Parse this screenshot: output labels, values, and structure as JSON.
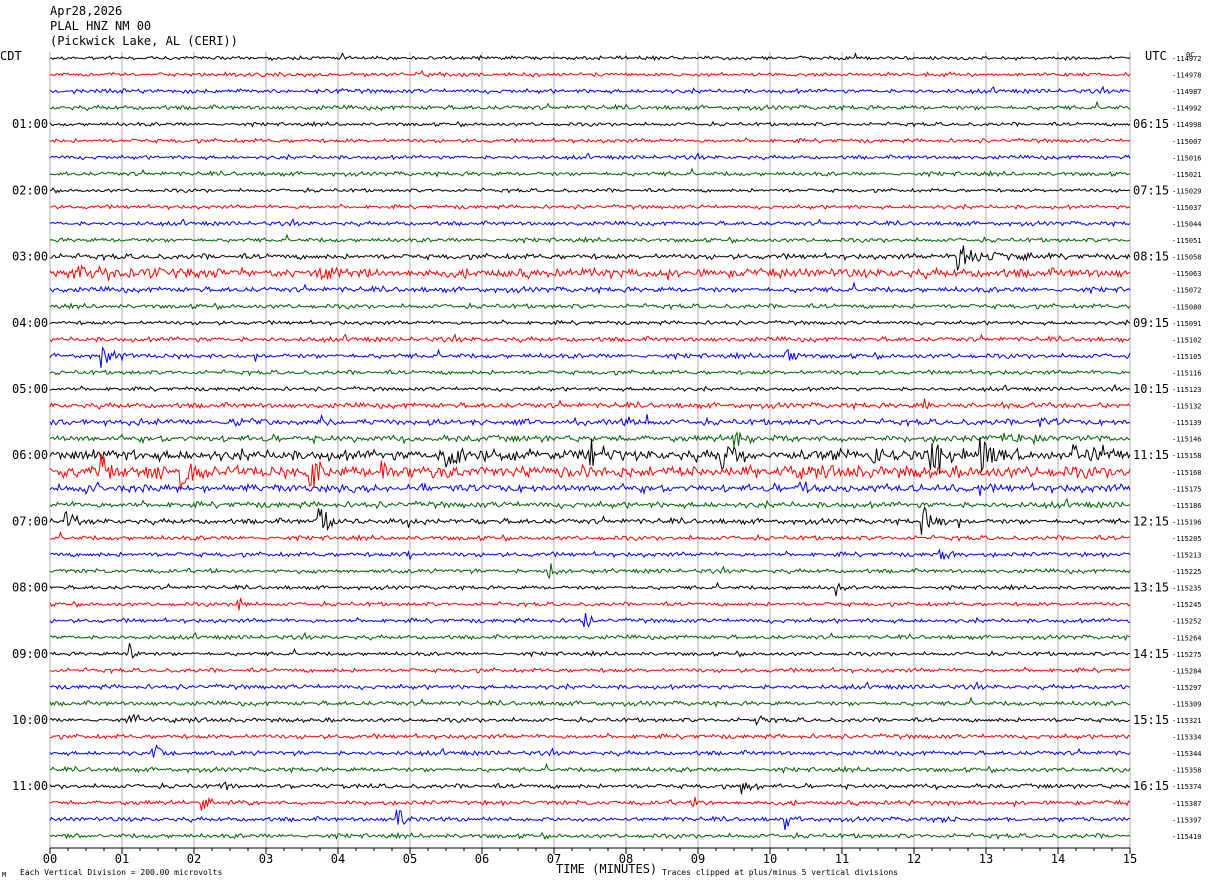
{
  "header": {
    "date": "Apr28,2026",
    "station": "PLAL HNZ NM 00",
    "location": "(Pickwick Lake, AL (CERI))"
  },
  "left_zone": "CDT",
  "right_zone": "UTC",
  "corner_mark": "0C",
  "footer": {
    "scale_note": "Each Vertical Division =  200.00 microvolts",
    "xlabel": "TIME (MINUTES)",
    "clip_note": "Traces clipped at plus/minus 5 vertical divisions",
    "logo": "M"
  },
  "colors": {
    "trace_cycle": [
      "#000000",
      "#ff0000",
      "#0000ff",
      "#006400"
    ],
    "grid": "#b0b0b0"
  },
  "chart_data": {
    "type": "line",
    "xlabel": "TIME (MINUTES)",
    "xlim": [
      0,
      15
    ],
    "x_ticks": [
      "00",
      "01",
      "02",
      "03",
      "04",
      "05",
      "06",
      "07",
      "08",
      "09",
      "10",
      "11",
      "12",
      "13",
      "14",
      "15"
    ],
    "left_time_labels": [
      {
        "row": 4,
        "text": "01:00"
      },
      {
        "row": 8,
        "text": "02:00"
      },
      {
        "row": 12,
        "text": "03:00"
      },
      {
        "row": 16,
        "text": "04:00"
      },
      {
        "row": 20,
        "text": "05:00"
      },
      {
        "row": 24,
        "text": "06:00"
      },
      {
        "row": 28,
        "text": "07:00"
      },
      {
        "row": 32,
        "text": "08:00"
      },
      {
        "row": 36,
        "text": "09:00"
      },
      {
        "row": 40,
        "text": "10:00"
      },
      {
        "row": 44,
        "text": "11:00"
      }
    ],
    "right_time_labels": [
      {
        "row": 4,
        "text": "06:15"
      },
      {
        "row": 8,
        "text": "07:15"
      },
      {
        "row": 12,
        "text": "08:15"
      },
      {
        "row": 16,
        "text": "09:15"
      },
      {
        "row": 20,
        "text": "10:15"
      },
      {
        "row": 24,
        "text": "11:15"
      },
      {
        "row": 28,
        "text": "12:15"
      },
      {
        "row": 32,
        "text": "13:15"
      },
      {
        "row": 36,
        "text": "14:15"
      },
      {
        "row": 40,
        "text": "15:15"
      },
      {
        "row": 44,
        "text": "16:15"
      }
    ],
    "trace_offsets": [
      "-114972",
      "-114978",
      "-114987",
      "-114992",
      "-114998",
      "-115007",
      "-115016",
      "-115021",
      "-115029",
      "-115037",
      "-115044",
      "-115051",
      "-115058",
      "-115063",
      "-115072",
      "-115080",
      "-115091",
      "-115102",
      "-115105",
      "-115116",
      "-115123",
      "-115132",
      "-115139",
      "-115146",
      "-115158",
      "-115168",
      "-115175",
      "-115186",
      "-115196",
      "-115205",
      "-115213",
      "-115225",
      "-115235",
      "-115245",
      "-115252",
      "-115264",
      "-115275",
      "-115284",
      "-115297",
      "-115309",
      "-115321",
      "-115334",
      "-115344",
      "-115358",
      "-115374",
      "-115387",
      "-115397",
      "-115410"
    ],
    "noise": [
      1.2,
      1.3,
      1.4,
      1.5,
      1.2,
      1.3,
      1.3,
      1.4,
      1.2,
      1.3,
      1.4,
      1.4,
      1.8,
      3.0,
      1.8,
      1.5,
      1.3,
      1.6,
      1.6,
      1.4,
      1.3,
      1.8,
      2.0,
      2.2,
      3.5,
      4.0,
      2.6,
      2.0,
      1.8,
      1.5,
      1.5,
      1.4,
      1.3,
      1.3,
      1.4,
      1.4,
      1.3,
      1.4,
      1.5,
      1.5,
      1.4,
      1.5,
      1.5,
      1.5,
      1.5,
      1.5,
      1.5,
      1.5
    ],
    "events": [
      {
        "row": 12,
        "min": 12.6,
        "amp": 9,
        "dur": 1.4
      },
      {
        "row": 13,
        "min": 0.3,
        "amp": 5,
        "dur": 2.6
      },
      {
        "row": 13,
        "min": 3.7,
        "amp": 4,
        "dur": 1.0
      },
      {
        "row": 13,
        "min": 7.4,
        "amp": 5,
        "dur": 0.9
      },
      {
        "row": 18,
        "min": 0.7,
        "amp": 8,
        "dur": 0.5
      },
      {
        "row": 18,
        "min": 10.2,
        "amp": 7,
        "dur": 0.3
      },
      {
        "row": 21,
        "min": 12.1,
        "amp": 6,
        "dur": 0.5
      },
      {
        "row": 22,
        "min": 2.5,
        "amp": 5,
        "dur": 0.4
      },
      {
        "row": 22,
        "min": 13.7,
        "amp": 6,
        "dur": 0.4
      },
      {
        "row": 23,
        "min": 9.5,
        "amp": 6,
        "dur": 0.8
      },
      {
        "row": 23,
        "min": 13.2,
        "amp": 5,
        "dur": 0.9
      },
      {
        "row": 24,
        "min": 5.5,
        "amp": 11,
        "dur": 0.5
      },
      {
        "row": 24,
        "min": 7.5,
        "amp": 11,
        "dur": 0.6
      },
      {
        "row": 24,
        "min": 9.3,
        "amp": 14,
        "dur": 0.5
      },
      {
        "row": 24,
        "min": 11.4,
        "amp": 13,
        "dur": 0.4
      },
      {
        "row": 24,
        "min": 12.2,
        "amp": 12,
        "dur": 0.7
      },
      {
        "row": 24,
        "min": 12.9,
        "amp": 14,
        "dur": 0.7
      },
      {
        "row": 24,
        "min": 14.2,
        "amp": 8,
        "dur": 0.8
      },
      {
        "row": 25,
        "min": 0.7,
        "amp": 14,
        "dur": 0.4
      },
      {
        "row": 25,
        "min": 1.8,
        "amp": 12,
        "dur": 0.5
      },
      {
        "row": 25,
        "min": 3.6,
        "amp": 15,
        "dur": 0.4
      },
      {
        "row": 25,
        "min": 4.6,
        "amp": 10,
        "dur": 0.4
      },
      {
        "row": 25,
        "min": 5.3,
        "amp": 6,
        "dur": 0.4
      },
      {
        "row": 25,
        "min": 7.3,
        "amp": 6,
        "dur": 0.6
      },
      {
        "row": 26,
        "min": 0.5,
        "amp": 6,
        "dur": 0.4
      },
      {
        "row": 26,
        "min": 10.4,
        "amp": 7,
        "dur": 0.4
      },
      {
        "row": 28,
        "min": 0.2,
        "amp": 7,
        "dur": 0.4
      },
      {
        "row": 28,
        "min": 3.7,
        "amp": 12,
        "dur": 0.5
      },
      {
        "row": 28,
        "min": 12.1,
        "amp": 10,
        "dur": 0.5
      },
      {
        "row": 30,
        "min": 4.9,
        "amp": 8,
        "dur": 0.2
      },
      {
        "row": 30,
        "min": 12.3,
        "amp": 5,
        "dur": 0.5
      },
      {
        "row": 31,
        "min": 6.9,
        "amp": 9,
        "dur": 0.3
      },
      {
        "row": 32,
        "min": 10.9,
        "amp": 7,
        "dur": 0.2
      },
      {
        "row": 33,
        "min": 2.6,
        "amp": 9,
        "dur": 0.2
      },
      {
        "row": 34,
        "min": 7.4,
        "amp": 10,
        "dur": 0.2
      },
      {
        "row": 36,
        "min": 1.1,
        "amp": 8,
        "dur": 0.2
      },
      {
        "row": 40,
        "min": 1.1,
        "amp": 9,
        "dur": 0.3
      },
      {
        "row": 40,
        "min": 9.8,
        "amp": 5,
        "dur": 0.3
      },
      {
        "row": 42,
        "min": 1.4,
        "amp": 10,
        "dur": 0.4
      },
      {
        "row": 44,
        "min": 2.4,
        "amp": 5,
        "dur": 0.3
      },
      {
        "row": 44,
        "min": 9.6,
        "amp": 9,
        "dur": 0.3
      },
      {
        "row": 45,
        "min": 2.1,
        "amp": 6,
        "dur": 0.3
      },
      {
        "row": 45,
        "min": 8.9,
        "amp": 9,
        "dur": 0.2
      },
      {
        "row": 46,
        "min": 4.8,
        "amp": 11,
        "dur": 0.3
      },
      {
        "row": 46,
        "min": 10.2,
        "amp": 7,
        "dur": 0.3
      },
      {
        "row": 46,
        "min": 12.3,
        "amp": 4,
        "dur": 0.4
      }
    ]
  }
}
